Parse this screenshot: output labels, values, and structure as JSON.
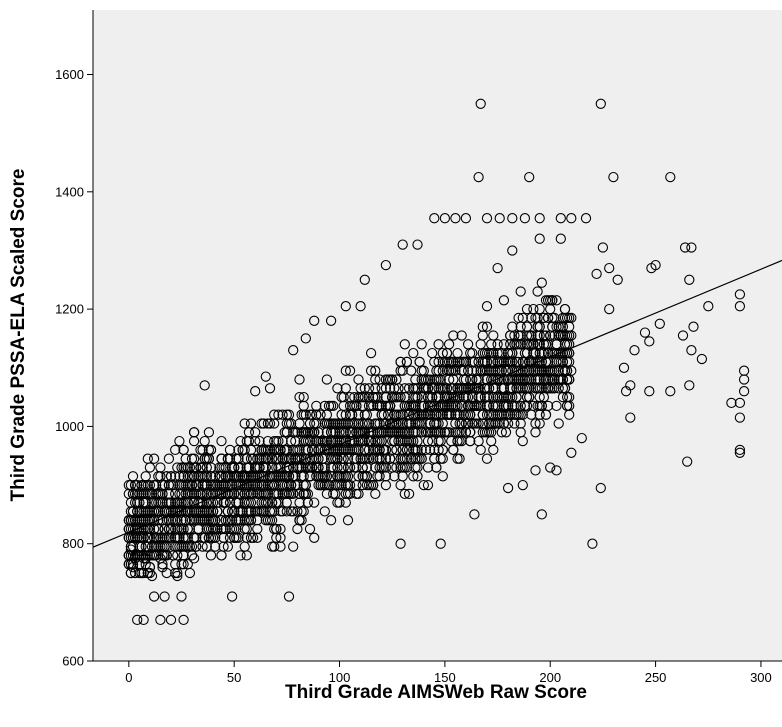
{
  "chart_data": {
    "type": "scatter",
    "title": "",
    "xlabel": "Third Grade AIMSWeb Raw Score",
    "ylabel": "Third Grade PSSA-ELA Scaled Score",
    "xlim": [
      -17,
      310
    ],
    "ylim": [
      600,
      1710
    ],
    "x_ticks": [
      "0",
      "50",
      "100",
      "150",
      "200",
      "250",
      "300"
    ],
    "y_ticks": [
      "600",
      "800",
      "1000",
      "1200",
      "1400",
      "1600"
    ],
    "grid": false,
    "legend": "none",
    "marker": "hollow circle",
    "plot_background": "#efefef",
    "regression_line": {
      "points": [
        [
          -17,
          794
        ],
        [
          310,
          1283
        ]
      ]
    },
    "series": [
      {
        "trend": {
          "x_range": [
            0,
            210
          ],
          "intercept": 820,
          "slope": 1.45,
          "spread": 70
        },
        "points": [
          [
            4,
            670
          ],
          [
            7,
            670
          ],
          [
            15,
            670
          ],
          [
            20,
            670
          ],
          [
            26,
            670
          ],
          [
            12,
            710
          ],
          [
            17,
            710
          ],
          [
            25,
            710
          ],
          [
            49,
            710
          ],
          [
            76,
            710
          ],
          [
            167,
            1550
          ],
          [
            224,
            1550
          ],
          [
            166,
            1425
          ],
          [
            190,
            1425
          ],
          [
            230,
            1425
          ],
          [
            257,
            1425
          ],
          [
            220,
            800
          ],
          [
            148,
            800
          ],
          [
            129,
            800
          ],
          [
            224,
            895
          ],
          [
            265,
            940
          ],
          [
            290,
            955
          ],
          [
            290,
            960
          ],
          [
            290,
            1015
          ],
          [
            290,
            1040
          ],
          [
            292,
            1060
          ],
          [
            292,
            1080
          ],
          [
            292,
            1095
          ],
          [
            286,
            1040
          ],
          [
            290,
            1205
          ],
          [
            290,
            1225
          ],
          [
            266,
            1070
          ],
          [
            272,
            1115
          ],
          [
            267,
            1130
          ],
          [
            263,
            1155
          ],
          [
            268,
            1170
          ],
          [
            266,
            1250
          ],
          [
            264,
            1305
          ],
          [
            267,
            1305
          ],
          [
            275,
            1205
          ],
          [
            247,
            1060
          ],
          [
            257,
            1060
          ],
          [
            247,
            1145
          ],
          [
            252,
            1175
          ],
          [
            248,
            1270
          ],
          [
            250,
            1275
          ],
          [
            36,
            1070
          ],
          [
            65,
            1085
          ],
          [
            60,
            1060
          ],
          [
            78,
            1130
          ],
          [
            84,
            1150
          ],
          [
            88,
            1180
          ],
          [
            96,
            1180
          ],
          [
            103,
            1205
          ],
          [
            110,
            1205
          ],
          [
            112,
            1250
          ],
          [
            122,
            1275
          ],
          [
            130,
            1310
          ],
          [
            137,
            1310
          ],
          [
            145,
            1355
          ],
          [
            150,
            1355
          ],
          [
            155,
            1355
          ],
          [
            160,
            1355
          ],
          [
            170,
            1355
          ],
          [
            176,
            1355
          ],
          [
            182,
            1355
          ],
          [
            188,
            1355
          ],
          [
            195,
            1355
          ],
          [
            205,
            1355
          ],
          [
            210,
            1355
          ],
          [
            217,
            1355
          ],
          [
            164,
            850
          ],
          [
            196,
            850
          ],
          [
            180,
            895
          ],
          [
            187,
            900
          ],
          [
            193,
            925
          ],
          [
            200,
            930
          ],
          [
            203,
            925
          ],
          [
            210,
            955
          ],
          [
            215,
            980
          ],
          [
            238,
            1015
          ],
          [
            236,
            1060
          ],
          [
            238,
            1070
          ],
          [
            235,
            1100
          ],
          [
            240,
            1130
          ],
          [
            245,
            1160
          ],
          [
            228,
            1200
          ],
          [
            232,
            1250
          ],
          [
            228,
            1270
          ],
          [
            222,
            1260
          ],
          [
            225,
            1305
          ],
          [
            170,
            1205
          ],
          [
            175,
            1270
          ],
          [
            182,
            1300
          ],
          [
            195,
            1320
          ],
          [
            205,
            1320
          ]
        ]
      }
    ]
  }
}
